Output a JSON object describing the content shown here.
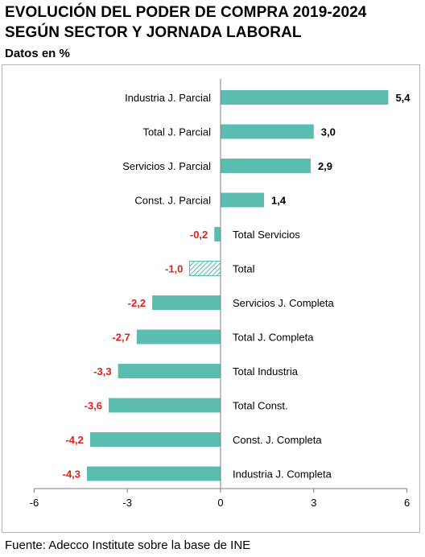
{
  "header": {
    "title_line1": "EVOLUCIÓN DEL PODER DE COMPRA 2019-2024",
    "title_line2": "SEGÚN SECTOR Y JORNADA LABORAL",
    "subtitle": "Datos en %"
  },
  "footer": {
    "source": "Fuente: Adecco Institute sobre la base de INE"
  },
  "colors": {
    "bar": "#5bbcb0",
    "negative_label": "#e0201b",
    "positive_label": "#000000",
    "axis": "#808080"
  },
  "chart_data": {
    "type": "bar",
    "orientation": "horizontal",
    "title": "EVOLUCIÓN DEL PODER DE COMPRA 2019-2024 SEGÚN SECTOR Y JORNADA LABORAL",
    "subtitle": "Datos en %",
    "categories": [
      "Industria J. Parcial",
      "Total J. Parcial",
      "Servicios J. Parcial",
      "Const. J. Parcial",
      "Total Servicios",
      "Total",
      "Servicios J. Completa",
      "Total J. Completa",
      "Total Industria",
      "Total Const.",
      "Const. J. Completa",
      "Industria  J. Completa"
    ],
    "values": [
      5.4,
      3.0,
      2.9,
      1.4,
      -0.2,
      -1.0,
      -2.2,
      -2.7,
      -3.3,
      -3.6,
      -4.2,
      -4.3
    ],
    "value_labels": [
      "5,4",
      "3,0",
      "2,9",
      "1,4",
      "-0,2",
      "-1,0",
      "-2,2",
      "-2,7",
      "-3,3",
      "-3,6",
      "-4,2",
      "-4,3"
    ],
    "highlighted_category": "Total",
    "highlight_style": "hatched",
    "xlim": [
      -6,
      6
    ],
    "xticks": [
      -6,
      -3,
      0,
      3,
      6
    ],
    "xtick_labels": [
      "-6",
      "-3",
      "0",
      "3",
      "6"
    ],
    "grid": false,
    "legend": "none"
  }
}
